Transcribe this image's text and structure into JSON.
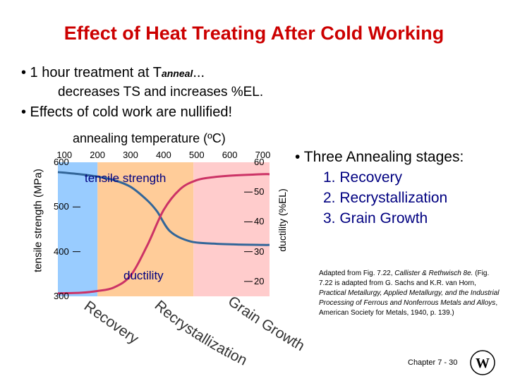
{
  "slide": {
    "title": "Effect of Heat Treating After Cold Working",
    "bullet1_prefix": "• 1 hour treatment at T",
    "bullet1_sub": "anneal",
    "bullet1_suffix": "...",
    "bullet1_line2": "decreases TS and increases %EL.",
    "bullet2": "• Effects of cold work are nullified!",
    "stages_heading": "• Three Annealing stages:",
    "stages": [
      "1.  Recovery",
      "2.  Recrystallization",
      "3.  Grain Growth"
    ],
    "caption": {
      "prefix": "Adapted from Fig. 7.22, ",
      "book": "Callister & Rethwisch 8e.",
      "middle": " (Fig. 7.22 is adapted from G. Sachs and K.R. van Horn, ",
      "source": "Practical Metallurgy, Applied Metallurgy, and the Industrial Processing of Ferrous and Nonferrous Metals and Alloys",
      "suffix": ", American Society for Metals, 1940, p. 139.)"
    },
    "footer": "Chapter 7 -   30",
    "logo_letters": "W"
  },
  "chart_data": {
    "type": "line",
    "title": "annealing temperature (ºC)",
    "x_ticks": [
      "100",
      "200",
      "300",
      "400",
      "500",
      "600",
      "700"
    ],
    "xlim": [
      80,
      720
    ],
    "left_axis": {
      "label": "tensile strength (MPa)",
      "ticks": [
        "600",
        "500",
        "400",
        "300"
      ],
      "ylim": [
        300,
        600
      ]
    },
    "right_axis": {
      "label": "ductility (%EL)",
      "ticks": [
        "60",
        "50",
        "40",
        "30",
        "20"
      ],
      "ylim": [
        15,
        60
      ]
    },
    "regions": [
      {
        "name": "Recovery",
        "from": 80,
        "to": 200,
        "color": "#99ccff"
      },
      {
        "name": "Recrystallization",
        "from": 200,
        "to": 490,
        "color": "#ffcc99"
      },
      {
        "name": "Grain Growth",
        "from": 490,
        "to": 720,
        "color": "#ffcccc"
      }
    ],
    "series": [
      {
        "name": "tensile strength",
        "color": "#336699",
        "x": [
          80,
          150,
          200,
          250,
          300,
          350,
          380,
          420,
          480,
          550,
          620,
          700,
          720
        ],
        "y": [
          578,
          573,
          568,
          560,
          545,
          515,
          490,
          445,
          423,
          418,
          416,
          415,
          415
        ]
      },
      {
        "name": "ductility",
        "color": "#cc3366",
        "x": [
          80,
          150,
          200,
          250,
          300,
          350,
          400,
          450,
          500,
          550,
          600,
          700,
          720
        ],
        "y": [
          16,
          16.2,
          16.8,
          18,
          22,
          32,
          44,
          51,
          54,
          55,
          55.5,
          56,
          56
        ]
      }
    ],
    "curve_labels": [
      "tensile strength",
      "ductility"
    ],
    "stage_labels": [
      "Recovery",
      "Recrystallization",
      "Grain Growth"
    ]
  }
}
